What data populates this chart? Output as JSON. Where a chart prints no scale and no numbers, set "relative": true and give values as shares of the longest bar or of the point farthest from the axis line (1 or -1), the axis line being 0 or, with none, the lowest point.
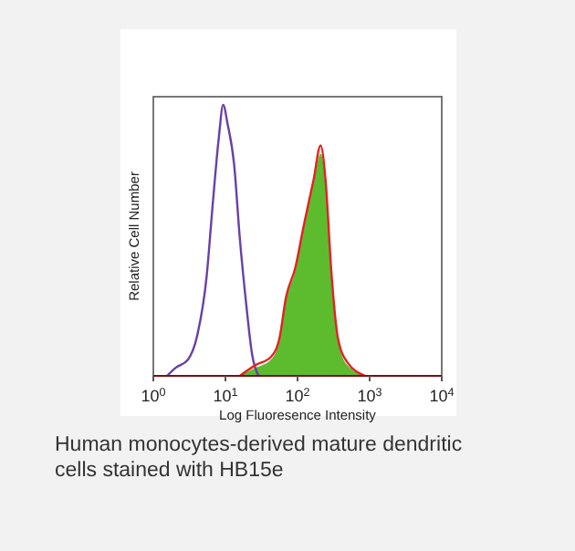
{
  "chart_data": {
    "type": "line",
    "xlabel": "Log Fluoresence Intensity",
    "ylabel": "Relative Cell Number",
    "relative": true,
    "log": "x",
    "xlim": [
      1,
      10000
    ],
    "xticks": [
      {
        "value": 1,
        "label": "10$^{0}$"
      },
      {
        "value": 10,
        "label": "10$^{1}$"
      },
      {
        "value": 100,
        "label": "10$^{2}$"
      },
      {
        "value": 1000,
        "label": "10$^{3}$"
      },
      {
        "value": 10000,
        "label": "10$^{4}$"
      }
    ],
    "grid": false,
    "annotations": [
      "Human monocytes-derived mature dendritic cells stained with HB15e"
    ],
    "series": [
      {
        "color": "#6a3fa8",
        "x": [
          1.55,
          2.04,
          3.02,
          4.07,
          5.5,
          6.6,
          8.1,
          9.3,
          10.7,
          13.2,
          15.8,
          19.5,
          23.4,
          28.8
        ],
        "values": [
          0,
          0.03,
          0.06,
          0.15,
          0.37,
          0.62,
          0.88,
          1,
          0.93,
          0.78,
          0.51,
          0.26,
          0.08,
          0
        ]
      },
      {
        "color": "#e32222",
        "x": [
          15.8,
          26.3,
          42.7,
          56.2,
          69.2,
          93.3,
          123,
          166,
          209,
          245,
          295,
          363,
          490,
          871
        ],
        "values": [
          0,
          0.04,
          0.07,
          0.14,
          0.29,
          0.4,
          0.56,
          0.72,
          0.85,
          0.72,
          0.38,
          0.14,
          0.05,
          0
        ]
      },
      {
        "type": "area",
        "color": "#5dbb2e",
        "x": [
          15.8,
          26.3,
          42.7,
          56.2,
          69.2,
          93.3,
          123,
          166,
          209,
          245,
          295,
          363,
          490,
          871
        ],
        "values": [
          0,
          0.03,
          0.06,
          0.13,
          0.28,
          0.39,
          0.55,
          0.71,
          0.82,
          0.71,
          0.37,
          0.13,
          0.04,
          0
        ]
      }
    ]
  }
}
